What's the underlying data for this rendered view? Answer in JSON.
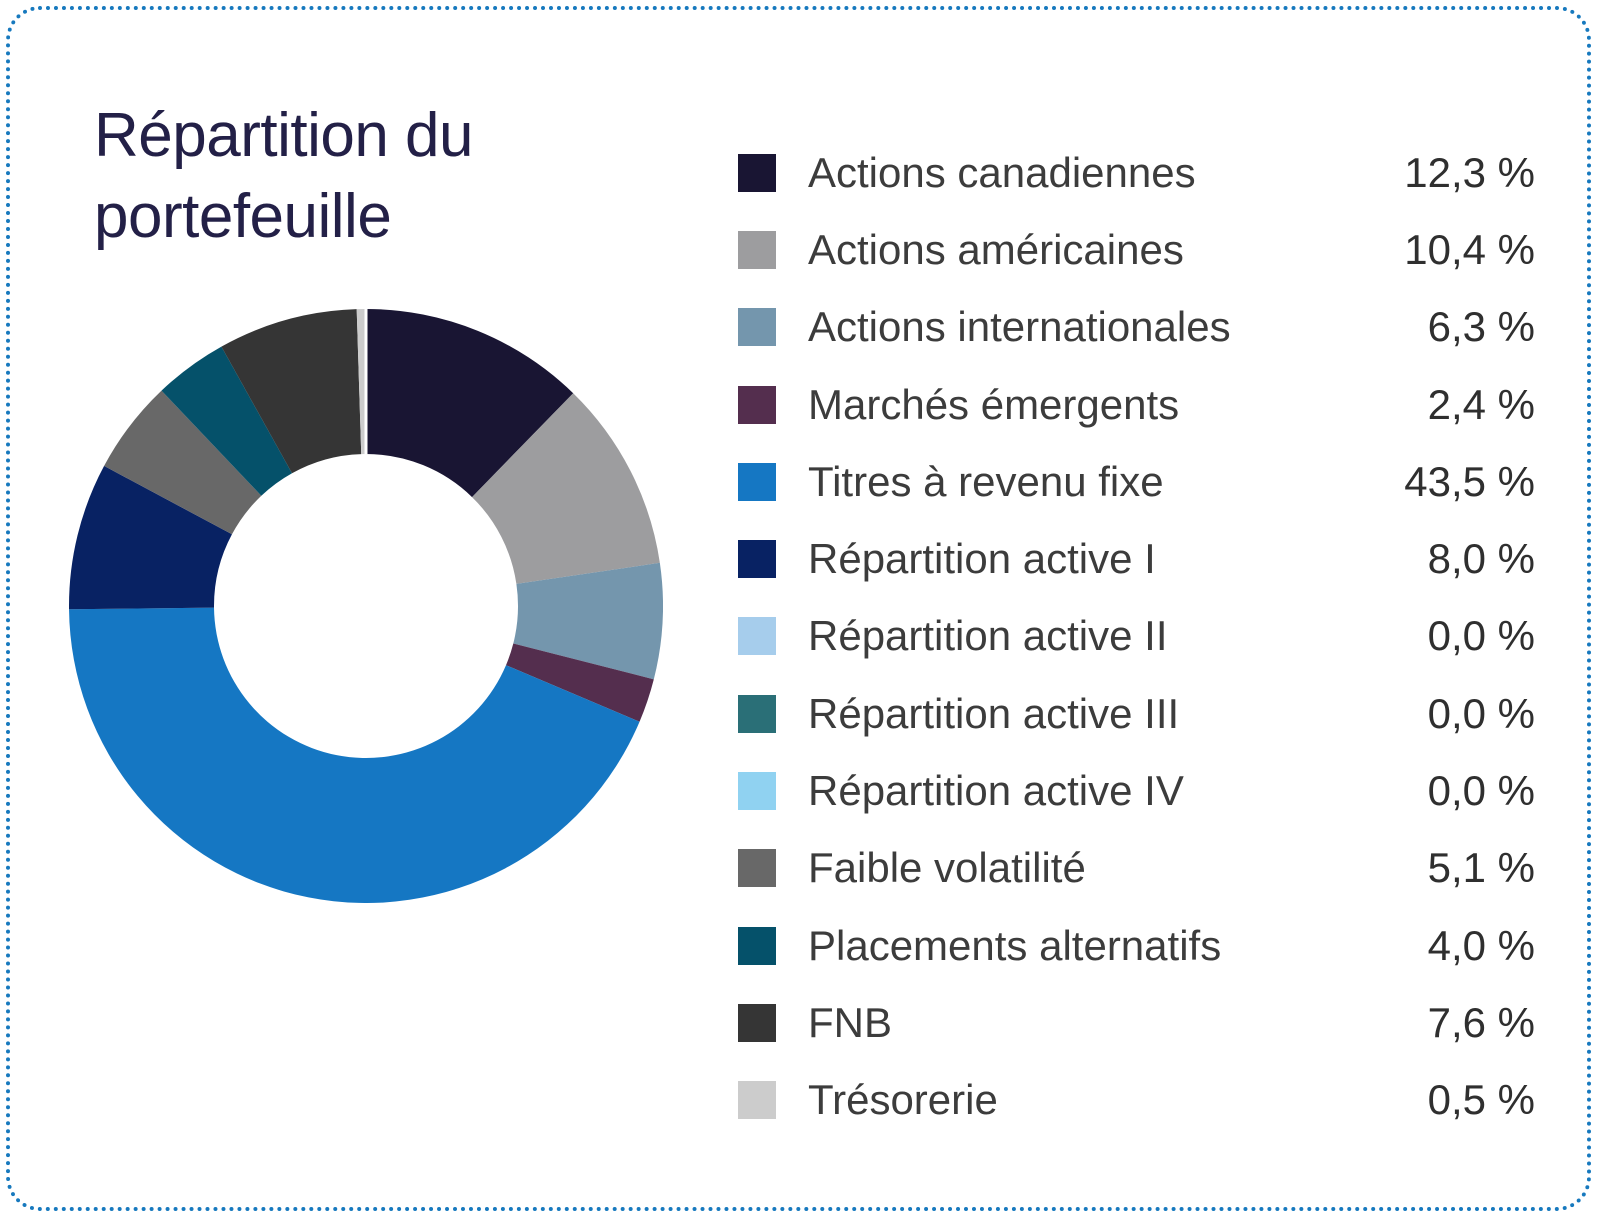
{
  "title": "Répartition du portefeuille",
  "chart_data": {
    "type": "pie",
    "donut": true,
    "title": "Répartition du portefeuille",
    "start_angle_deg": 0,
    "direction": "clockwise",
    "legend_position": "right",
    "inner_radius_ratio": 0.512,
    "categories": [
      "Actions canadiennes",
      "Actions américaines",
      "Actions internationales",
      "Marchés émergents",
      "Titres à revenu fixe",
      "Répartition active I",
      "Répartition active II",
      "Répartition active III",
      "Répartition active IV",
      "Faible volatilité",
      "Placements alternatifs",
      "FNB",
      "Trésorerie"
    ],
    "values": [
      12.3,
      10.4,
      6.3,
      2.4,
      43.5,
      8.0,
      0.0,
      0.0,
      0.0,
      5.1,
      4.0,
      7.6,
      0.5
    ],
    "display_values": [
      "12,3 %",
      "10,4 %",
      "6,3 %",
      "2,4 %",
      "43,5 %",
      "8,0 %",
      "0,0 %",
      "0,0 %",
      "0,0 %",
      "5,1 %",
      "4,0 %",
      "7,6 %",
      "0,5 %"
    ],
    "colors": [
      "#191533",
      "#9d9d9f",
      "#7496ad",
      "#542e4e",
      "#1577c3",
      "#082263",
      "#a6cdec",
      "#2a6f77",
      "#90d2f1",
      "#686868",
      "#05516a",
      "#353535",
      "#cccccc"
    ]
  },
  "style": {
    "border_color": "#1779be",
    "title_color": "#232047",
    "label_color": "#3c3c3c",
    "value_color": "#2f2f2f"
  }
}
